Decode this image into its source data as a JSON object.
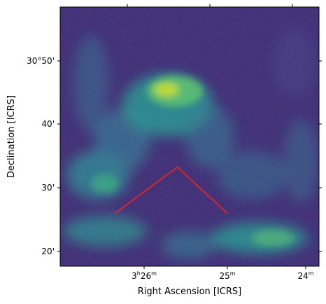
{
  "chart_data": {
    "type": "heatmap",
    "title": "",
    "xlabel": "Right Ascension [ICRS]",
    "ylabel": "Declination [ICRS]",
    "x_ticks": [
      {
        "value": 206,
        "label_main": "3",
        "label_sup1": "h",
        "label_mid": "26",
        "label_sup2": "m"
      },
      {
        "value": 325,
        "label_main": "25",
        "label_sup1": "m",
        "label_mid": "",
        "label_sup2": ""
      },
      {
        "value": 437,
        "label_main": "24",
        "label_sup1": "m",
        "label_mid": "",
        "label_sup2": ""
      }
    ],
    "y_ticks": [
      {
        "label": "30°50'",
        "dec_arcmin": 50
      },
      {
        "label": "40'",
        "dec_arcmin": 40
      },
      {
        "label": "30'",
        "dec_arcmin": 30
      },
      {
        "label": "20'",
        "dec_arcmin": 20
      }
    ],
    "colormap": "viridis",
    "overlay_line": {
      "color": "#d62728",
      "points": [
        {
          "ra_min": 26.35,
          "dec_arcmin": 26
        },
        {
          "ra_min": 25.6,
          "dec_arcmin": 33.3
        },
        {
          "ra_min": 25.0,
          "dec_arcmin": 26
        }
      ]
    }
  }
}
